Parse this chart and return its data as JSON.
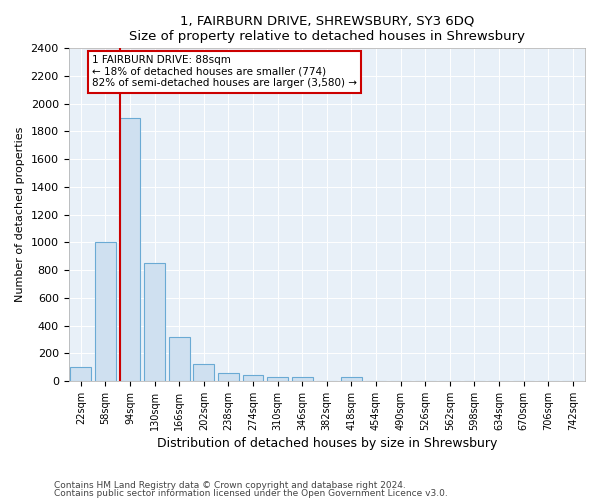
{
  "title": "1, FAIRBURN DRIVE, SHREWSBURY, SY3 6DQ",
  "subtitle": "Size of property relative to detached houses in Shrewsbury",
  "xlabel": "Distribution of detached houses by size in Shrewsbury",
  "ylabel": "Number of detached properties",
  "bin_labels": [
    "22sqm",
    "58sqm",
    "94sqm",
    "130sqm",
    "166sqm",
    "202sqm",
    "238sqm",
    "274sqm",
    "310sqm",
    "346sqm",
    "382sqm",
    "418sqm",
    "454sqm",
    "490sqm",
    "526sqm",
    "562sqm",
    "598sqm",
    "634sqm",
    "670sqm",
    "706sqm",
    "742sqm"
  ],
  "bar_heights": [
    100,
    1000,
    1900,
    850,
    320,
    120,
    55,
    45,
    30,
    25,
    0,
    25,
    0,
    0,
    0,
    0,
    0,
    0,
    0,
    0,
    0
  ],
  "bar_color": "#cfe0f0",
  "bar_edge_color": "#6aaad4",
  "vline_color": "#cc0000",
  "annotation_text": "1 FAIRBURN DRIVE: 88sqm\n← 18% of detached houses are smaller (774)\n82% of semi-detached houses are larger (3,580) →",
  "annotation_box_color": "#ffffff",
  "annotation_box_edge": "#cc0000",
  "ylim": [
    0,
    2400
  ],
  "yticks": [
    0,
    200,
    400,
    600,
    800,
    1000,
    1200,
    1400,
    1600,
    1800,
    2000,
    2200,
    2400
  ],
  "footer1": "Contains HM Land Registry data © Crown copyright and database right 2024.",
  "footer2": "Contains public sector information licensed under the Open Government Licence v3.0.",
  "plot_bg_color": "#e8f0f8",
  "fig_bg_color": "#ffffff",
  "grid_color": "#ffffff"
}
